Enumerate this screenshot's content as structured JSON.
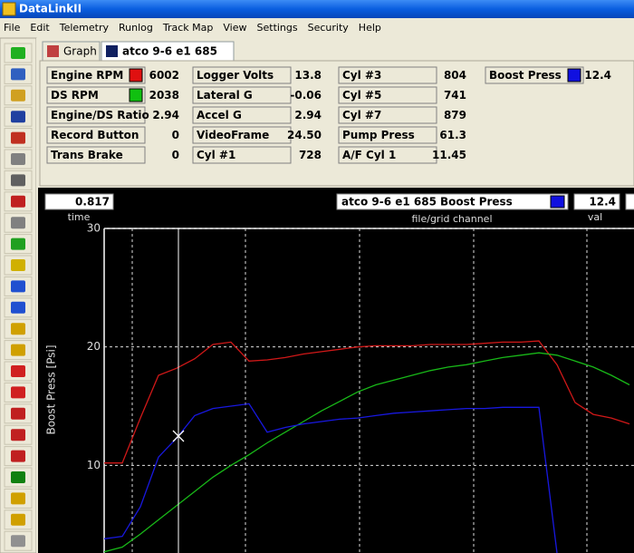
{
  "window": {
    "title": "DataLinkII"
  },
  "menu": [
    "File",
    "Edit",
    "Telemetry",
    "Runlog",
    "Track Map",
    "View",
    "Settings",
    "Security",
    "Help"
  ],
  "tabs": [
    "Graph",
    "atco 9-6 e1 685"
  ],
  "channels": [
    [
      {
        "label": "Engine RPM",
        "value": "6002",
        "color": "#e01010"
      },
      {
        "label": "DS RPM",
        "value": "2038",
        "color": "#10c010"
      },
      {
        "label": "Engine/DS Ratio",
        "value": "2.94"
      },
      {
        "label": "Record Button",
        "value": "0"
      },
      {
        "label": "Trans Brake",
        "value": "0"
      }
    ],
    [
      {
        "label": "Logger Volts",
        "value": "13.8"
      },
      {
        "label": "Lateral G",
        "value": "-0.06"
      },
      {
        "label": "Accel G",
        "value": "2.94"
      },
      {
        "label": "VideoFrame",
        "value": "24.50"
      },
      {
        "label": "Cyl #1",
        "value": "728"
      }
    ],
    [
      {
        "label": "Cyl #3",
        "value": "804"
      },
      {
        "label": "Cyl #5",
        "value": "741"
      },
      {
        "label": "Cyl #7",
        "value": "879"
      },
      {
        "label": "Pump Press",
        "value": "61.3"
      },
      {
        "label": "A/F Cyl 1",
        "value": "11.45"
      }
    ],
    [
      {
        "label": "Boost Press",
        "value": "12.4",
        "color": "#1010e0"
      }
    ]
  ],
  "readout": {
    "time": "0.817",
    "time_label": "time",
    "file": "atco 9-6 e1 685",
    "channel": "Boost Press",
    "channel_color": "#1010e0",
    "channel_label": "file/grid channel",
    "val": "12.4",
    "val_label": "val"
  },
  "chart_data": {
    "type": "line",
    "y_label": "Boost Press [Psi]",
    "ylim": [
      2.6,
      30
    ],
    "yticks": [
      10,
      20,
      30
    ],
    "grid": true,
    "series": [
      {
        "color": "#d01818",
        "values": [
          10.2,
          10.2,
          14,
          17.6,
          18.2,
          19,
          20.2,
          20.4,
          18.8,
          18.9,
          19.1,
          19.4,
          19.6,
          19.8,
          20,
          20.1,
          20.1,
          20.1,
          20.2,
          20.2,
          20.2,
          20.3,
          20.4,
          20.4,
          20.5,
          18.5,
          15.3,
          14.3,
          14,
          13.5
        ]
      },
      {
        "color": "#18b818",
        "values": [
          2.7,
          3.1,
          4.2,
          5.4,
          6.6,
          7.8,
          9,
          10,
          10.9,
          11.9,
          12.8,
          13.7,
          14.6,
          15.4,
          16.2,
          16.8,
          17.2,
          17.6,
          18,
          18.3,
          18.5,
          18.8,
          19.1,
          19.3,
          19.5,
          19.3,
          18.8,
          18.3,
          17.6,
          16.8
        ]
      },
      {
        "color": "#1818e0",
        "values": [
          3.8,
          4,
          6.5,
          10.7,
          12.3,
          14.2,
          14.8,
          15,
          15.2,
          12.8,
          13.2,
          13.5,
          13.7,
          13.9,
          14,
          14.2,
          14.4,
          14.5,
          14.6,
          14.7,
          14.8,
          14.8,
          14.9,
          14.9,
          14.9,
          2.6,
          null,
          null,
          null,
          null
        ]
      }
    ]
  }
}
